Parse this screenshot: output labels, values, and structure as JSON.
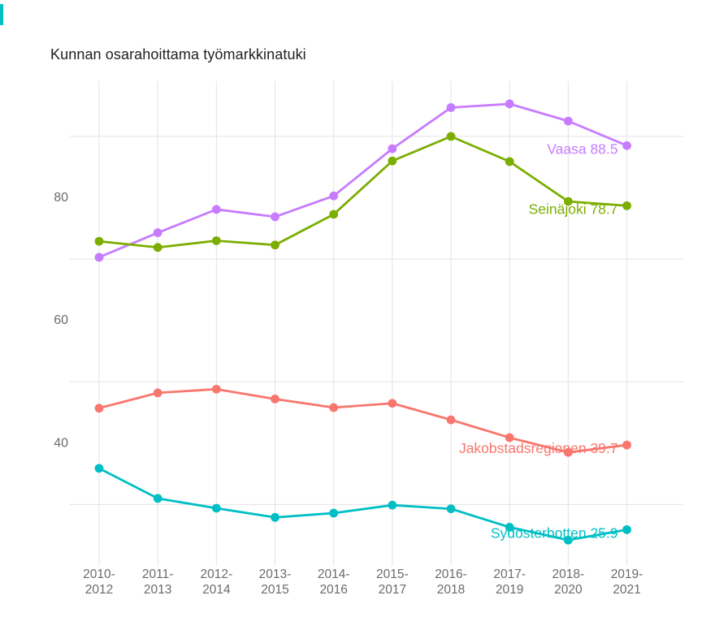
{
  "page": {
    "background_color": "#ffffff",
    "accent_mark_color": "#00BFC4"
  },
  "chart_data": {
    "type": "line",
    "title": "Kunnan osarahoittama työmarkkinatuki",
    "xlabel": "",
    "ylabel": "",
    "categories": [
      "2010-2012",
      "2011-2013",
      "2012-2014",
      "2013-2015",
      "2014-2016",
      "2015-2017",
      "2016-2018",
      "2017-2019",
      "2018-2020",
      "2019-2021"
    ],
    "category_display_lines": [
      {
        "top": "2010-",
        "bottom": "2012"
      },
      {
        "top": "2011-",
        "bottom": "2013"
      },
      {
        "top": "2012-",
        "bottom": "2014"
      },
      {
        "top": "2013-",
        "bottom": "2015"
      },
      {
        "top": "2014-",
        "bottom": "2016"
      },
      {
        "top": "2015-",
        "bottom": "2017"
      },
      {
        "top": "2016-",
        "bottom": "2018"
      },
      {
        "top": "2017-",
        "bottom": "2019"
      },
      {
        "top": "2018-",
        "bottom": "2020"
      },
      {
        "top": "2019-",
        "bottom": "2021"
      }
    ],
    "series": [
      {
        "name": "Vaasa",
        "color": "#C77CFF",
        "end_label": "Vaasa 88.5",
        "last_value": 88.5,
        "values": [
          70.3,
          74.3,
          78.1,
          76.9,
          80.3,
          88.0,
          94.7,
          95.3,
          92.5,
          88.5
        ]
      },
      {
        "name": "Seinäjoki",
        "color": "#7CAE00",
        "end_label": "Seinäjoki 78.7",
        "last_value": 78.7,
        "values": [
          72.9,
          71.9,
          73.0,
          72.3,
          77.3,
          86.0,
          90.0,
          85.9,
          79.4,
          78.7
        ]
      },
      {
        "name": "Jakobstadsregionen",
        "color": "#F8766D",
        "end_label": "Jakobstadsregionen 39.7",
        "last_value": 39.7,
        "values": [
          45.7,
          48.2,
          48.8,
          47.2,
          45.8,
          46.5,
          43.8,
          40.9,
          38.5,
          39.7
        ]
      },
      {
        "name": "Sydösterbotten",
        "color": "#00BFC4",
        "end_label": "Sydösterbotten 25.9",
        "last_value": 25.9,
        "values": [
          35.9,
          31.0,
          29.4,
          27.9,
          28.6,
          29.9,
          29.3,
          26.3,
          24.2,
          25.9
        ]
      }
    ],
    "yticks": [
      {
        "value": 40,
        "label": "40"
      },
      {
        "value": 60,
        "label": "60"
      },
      {
        "value": 80,
        "label": "80"
      }
    ],
    "grid_y_values": [
      30,
      50,
      70,
      90
    ],
    "ylim": [
      20,
      99
    ],
    "grid": true,
    "grid_color": "#e3e3e3",
    "axis_text_color": "#6b6b6b",
    "legend_position": "inline-end-labels"
  }
}
